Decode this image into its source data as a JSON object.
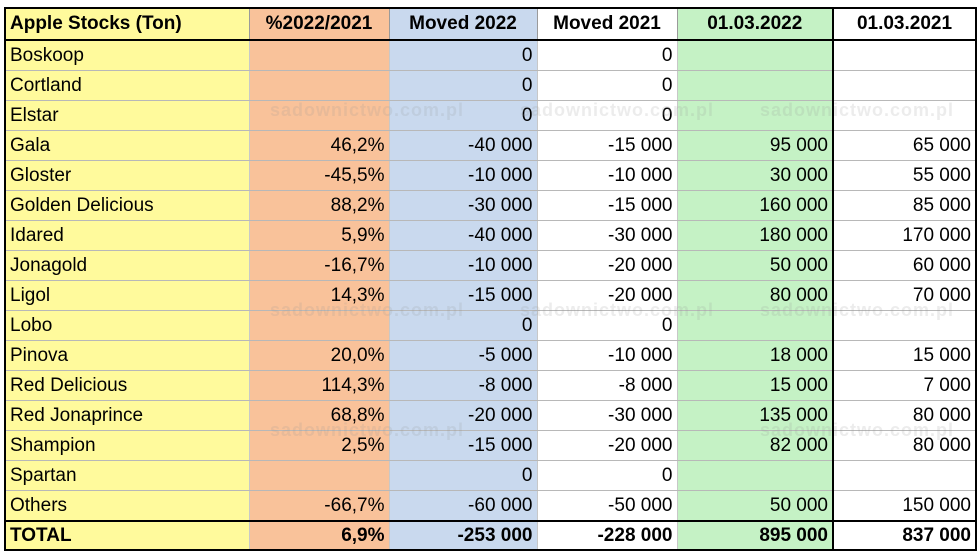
{
  "table": {
    "headers": [
      "Apple Stocks (Ton)",
      "%2022/2021",
      "Moved 2022",
      "Moved 2021",
      "01.03.2022",
      "01.03.2021"
    ],
    "rows": [
      [
        "Boskoop",
        "",
        "0",
        "0",
        "",
        ""
      ],
      [
        "Cortland",
        "",
        "0",
        "0",
        "",
        ""
      ],
      [
        "Elstar",
        "",
        "0",
        "0",
        "",
        ""
      ],
      [
        "Gala",
        "46,2%",
        "-40 000",
        "-15 000",
        "95 000",
        "65 000"
      ],
      [
        "Gloster",
        "-45,5%",
        "-10 000",
        "-10 000",
        "30 000",
        "55 000"
      ],
      [
        "Golden Delicious",
        "88,2%",
        "-30 000",
        "-15 000",
        "160 000",
        "85 000"
      ],
      [
        "Idared",
        "5,9%",
        "-40 000",
        "-30 000",
        "180 000",
        "170 000"
      ],
      [
        "Jonagold",
        "-16,7%",
        "-10 000",
        "-20 000",
        "50 000",
        "60 000"
      ],
      [
        "Ligol",
        "14,3%",
        "-15 000",
        "-20 000",
        "80 000",
        "70 000"
      ],
      [
        "Lobo",
        "",
        "0",
        "0",
        "",
        ""
      ],
      [
        "Pinova",
        "20,0%",
        "-5 000",
        "-10 000",
        "18 000",
        "15 000"
      ],
      [
        "Red Delicious",
        "114,3%",
        "-8 000",
        "-8 000",
        "15 000",
        "7 000"
      ],
      [
        "Red Jonaprince",
        "68,8%",
        "-20 000",
        "-30 000",
        "135 000",
        "80 000"
      ],
      [
        "Shampion",
        "2,5%",
        "-15 000",
        "-20 000",
        "82 000",
        "80 000"
      ],
      [
        "Spartan",
        "",
        "0",
        "0",
        "",
        ""
      ],
      [
        "Others",
        "-66,7%",
        "-60 000",
        "-50 000",
        "50 000",
        "150 000"
      ]
    ],
    "total": [
      "TOTAL",
      "6,9%",
      "-253 000",
      "-228 000",
      "895 000",
      "837 000"
    ]
  },
  "watermark": "sadownictwo.com.pl",
  "colors": {
    "col0": "#fffa9c",
    "col1": "#f9c29a",
    "col2": "#c9d9ee",
    "col4": "#c5f2c5"
  }
}
